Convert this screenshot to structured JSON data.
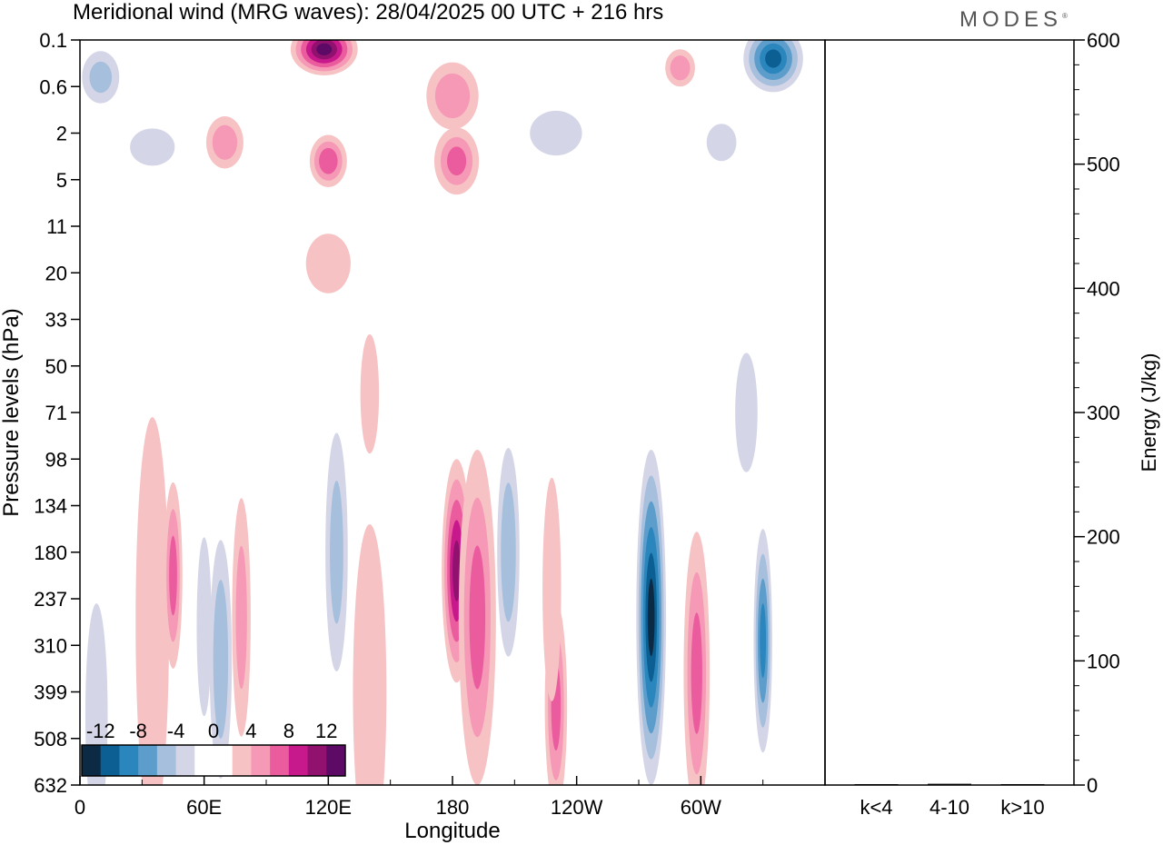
{
  "header": {
    "title": "Meridional wind (MRG waves):  28/04/2025  00 UTC  + 216 hrs",
    "logo": "MODES"
  },
  "chart_data": [
    {
      "type": "heatmap",
      "title": "Meridional wind (MRG waves):  28/04/2025  00 UTC  + 216 hrs",
      "xlabel": "Longitude",
      "ylabel": "Pressure levels (hPa)",
      "x_ticks": [
        "0",
        "60E",
        "120E",
        "180",
        "120W",
        "60W"
      ],
      "x_tick_positions_deg": [
        0,
        60,
        120,
        180,
        240,
        300
      ],
      "xlim": [
        0,
        360
      ],
      "y_ticks": [
        "0.1",
        "0.6",
        "2",
        "5",
        "11",
        "20",
        "33",
        "50",
        "71",
        "98",
        "134",
        "180",
        "237",
        "310",
        "399",
        "508",
        "632"
      ],
      "colorbar": {
        "labels": [
          "-12",
          "-8",
          "-4",
          "0",
          "4",
          "8",
          "12"
        ],
        "levels": [
          -14,
          -12,
          -10,
          -8,
          -6,
          -4,
          -2,
          0,
          2,
          4,
          6,
          8,
          10,
          12,
          14
        ],
        "colors": [
          "#0d2a45",
          "#0b5f92",
          "#2a86bd",
          "#5d9dcb",
          "#a5bfdd",
          "#d4d6e8",
          "#ffffff",
          "#ffffff",
          "#f7c2c4",
          "#f599b6",
          "#ea5c9d",
          "#c8198c",
          "#91116f",
          "#5c0a65"
        ],
        "placement": "bottom-left"
      },
      "features": [
        {
          "lon": 35,
          "level": 12.5,
          "w": 9,
          "h": 5.5,
          "v": 3
        },
        {
          "lon": 45,
          "level": 11.5,
          "w": 5,
          "h": 2.5,
          "v": 6
        },
        {
          "lon": 68,
          "level": 13.3,
          "w": 6,
          "h": 3.2,
          "v": -5
        },
        {
          "lon": 60,
          "level": 12.6,
          "w": 4,
          "h": 2.4,
          "v": -3
        },
        {
          "lon": 78,
          "level": 12.4,
          "w": 5,
          "h": 3.2,
          "v": 4
        },
        {
          "lon": 8,
          "level": 14.5,
          "w": 6,
          "h": 3,
          "v": -3
        },
        {
          "lon": 140,
          "level": 14,
          "w": 9,
          "h": 4.5,
          "v": 3
        },
        {
          "lon": 124,
          "level": 11,
          "w": 6,
          "h": 3.2,
          "v": -4
        },
        {
          "lon": 140,
          "level": 7.6,
          "w": 5,
          "h": 1.6,
          "v": 2.5
        },
        {
          "lon": 182,
          "level": 11.4,
          "w": 8,
          "h": 3,
          "v": 10
        },
        {
          "lon": 192,
          "level": 12.4,
          "w": 10,
          "h": 4.5,
          "v": 6
        },
        {
          "lon": 207,
          "level": 11,
          "w": 6,
          "h": 2.8,
          "v": -5
        },
        {
          "lon": 230,
          "level": 14.3,
          "w": 6,
          "h": 2.8,
          "v": 6
        },
        {
          "lon": 228,
          "level": 11.8,
          "w": 5,
          "h": 3,
          "v": 3
        },
        {
          "lon": 276,
          "level": 12.4,
          "w": 8,
          "h": 4.5,
          "v": -12
        },
        {
          "lon": 298,
          "level": 13.6,
          "w": 7,
          "h": 3.8,
          "v": 6
        },
        {
          "lon": 330,
          "level": 12.9,
          "w": 5,
          "h": 3,
          "v": -8
        },
        {
          "lon": 322,
          "level": 8,
          "w": 6,
          "h": 1.6,
          "v": -3
        },
        {
          "lon": 118,
          "level": 0.2,
          "w": 18,
          "h": 0.7,
          "v": 12
        },
        {
          "lon": 335,
          "level": 0.4,
          "w": 16,
          "h": 0.9,
          "v": -10
        },
        {
          "lon": 10,
          "level": 0.8,
          "w": 10,
          "h": 0.7,
          "v": -4
        },
        {
          "lon": 70,
          "level": 2.2,
          "w": 10,
          "h": 0.7,
          "v": 5
        },
        {
          "lon": 120,
          "level": 2.6,
          "w": 10,
          "h": 0.7,
          "v": 7
        },
        {
          "lon": 180,
          "level": 1.2,
          "w": 14,
          "h": 0.9,
          "v": 5
        },
        {
          "lon": 182,
          "level": 2.6,
          "w": 12,
          "h": 0.9,
          "v": 6
        },
        {
          "lon": 230,
          "level": 2,
          "w": 14,
          "h": 0.6,
          "v": -3
        },
        {
          "lon": 290,
          "level": 0.6,
          "w": 8,
          "h": 0.5,
          "v": 5
        },
        {
          "lon": 35,
          "level": 2.3,
          "w": 12,
          "h": 0.5,
          "v": -3
        },
        {
          "lon": 120,
          "level": 4.8,
          "w": 12,
          "h": 0.8,
          "v": 2.5
        },
        {
          "lon": 310,
          "level": 2.2,
          "w": 8,
          "h": 0.5,
          "v": -2.5
        }
      ]
    },
    {
      "type": "bar",
      "ylabel": "Energy (J/kg)",
      "categories": [
        "k<4",
        "4-10",
        "k>10"
      ],
      "values": [
        0,
        1,
        0
      ],
      "ylim": [
        0,
        600
      ],
      "y_ticks": [
        "0",
        "100",
        "200",
        "300",
        "400",
        "500",
        "600"
      ]
    }
  ]
}
